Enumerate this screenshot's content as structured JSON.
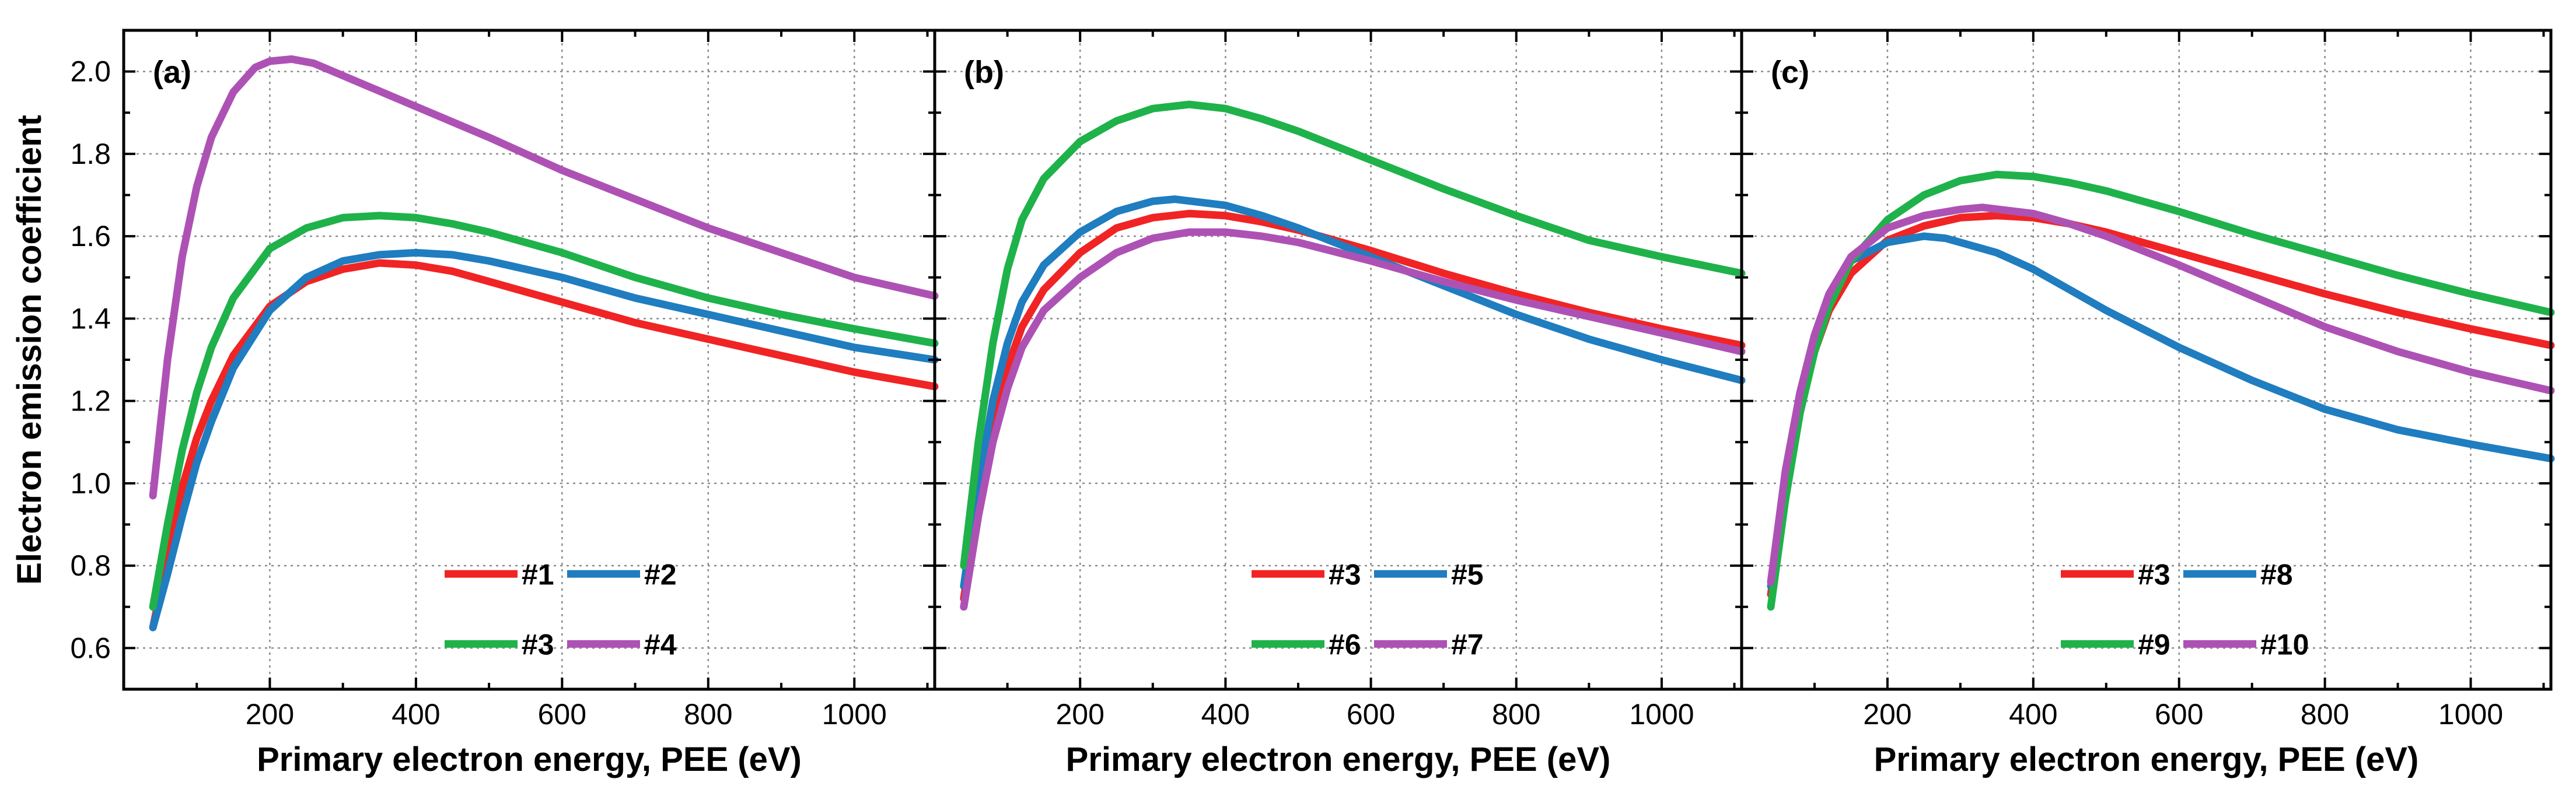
{
  "colors": {
    "#1": "#f02424",
    "#2": "#1f7dc0",
    "#3": "#1fb24a",
    "#4": "#ad52b4",
    "#5": "#1f7dc0",
    "#6": "#1fb24a",
    "#7": "#ad52b4",
    "#8": "#1f7dc0",
    "#9": "#1fb24a",
    "#10": "#ad52b4",
    "panel_c_#3": "#f02424",
    "panel_b_#3": "#f02424"
  },
  "figure": {
    "ylabel": "Electron emission coefficient",
    "xlabel": "Primary electron energy, PEE (eV)"
  },
  "chart_data": [
    {
      "type": "line",
      "panel_label": "(a)",
      "xlabel": "Primary electron energy, PEE (eV)",
      "ylabel": "Electron emission coefficient",
      "xlim": [
        0,
        1110
      ],
      "ylim": [
        0.5,
        2.1
      ],
      "x_ticks": [
        200,
        400,
        600,
        800,
        1000
      ],
      "y_ticks": [
        "0.6",
        "0.8",
        "1.0",
        "1.2",
        "1.4",
        "1.6",
        "1.8",
        "2.0"
      ],
      "grid": true,
      "legend_position": "bottom-right",
      "series": [
        {
          "name": "#1",
          "color": "#f02424",
          "points": [
            [
              40,
              0.65
            ],
            [
              60,
              0.82
            ],
            [
              80,
              0.99
            ],
            [
              100,
              1.11
            ],
            [
              120,
              1.2
            ],
            [
              150,
              1.31
            ],
            [
              200,
              1.43
            ],
            [
              250,
              1.49
            ],
            [
              300,
              1.52
            ],
            [
              350,
              1.535
            ],
            [
              400,
              1.53
            ],
            [
              450,
              1.515
            ],
            [
              500,
              1.49
            ],
            [
              600,
              1.44
            ],
            [
              700,
              1.39
            ],
            [
              800,
              1.35
            ],
            [
              900,
              1.31
            ],
            [
              1000,
              1.27
            ],
            [
              1110,
              1.235
            ]
          ]
        },
        {
          "name": "#2",
          "color": "#1f7dc0",
          "points": [
            [
              40,
              0.65
            ],
            [
              60,
              0.78
            ],
            [
              80,
              0.92
            ],
            [
              100,
              1.05
            ],
            [
              120,
              1.15
            ],
            [
              150,
              1.28
            ],
            [
              200,
              1.42
            ],
            [
              250,
              1.5
            ],
            [
              300,
              1.54
            ],
            [
              350,
              1.555
            ],
            [
              400,
              1.56
            ],
            [
              450,
              1.555
            ],
            [
              500,
              1.54
            ],
            [
              600,
              1.5
            ],
            [
              700,
              1.45
            ],
            [
              800,
              1.41
            ],
            [
              900,
              1.37
            ],
            [
              1000,
              1.33
            ],
            [
              1110,
              1.3
            ]
          ]
        },
        {
          "name": "#3",
          "color": "#1fb24a",
          "points": [
            [
              40,
              0.7
            ],
            [
              60,
              0.9
            ],
            [
              80,
              1.08
            ],
            [
              100,
              1.22
            ],
            [
              120,
              1.33
            ],
            [
              150,
              1.45
            ],
            [
              200,
              1.57
            ],
            [
              250,
              1.62
            ],
            [
              300,
              1.645
            ],
            [
              350,
              1.65
            ],
            [
              400,
              1.645
            ],
            [
              450,
              1.63
            ],
            [
              500,
              1.61
            ],
            [
              600,
              1.56
            ],
            [
              700,
              1.5
            ],
            [
              800,
              1.45
            ],
            [
              900,
              1.41
            ],
            [
              1000,
              1.375
            ],
            [
              1110,
              1.34
            ]
          ]
        },
        {
          "name": "#4",
          "color": "#ad52b4",
          "points": [
            [
              40,
              0.97
            ],
            [
              60,
              1.3
            ],
            [
              80,
              1.55
            ],
            [
              100,
              1.72
            ],
            [
              120,
              1.84
            ],
            [
              150,
              1.95
            ],
            [
              180,
              2.01
            ],
            [
              200,
              2.025
            ],
            [
              230,
              2.03
            ],
            [
              260,
              2.02
            ],
            [
              300,
              1.99
            ],
            [
              400,
              1.915
            ],
            [
              500,
              1.84
            ],
            [
              600,
              1.76
            ],
            [
              700,
              1.69
            ],
            [
              800,
              1.62
            ],
            [
              900,
              1.56
            ],
            [
              1000,
              1.5
            ],
            [
              1110,
              1.455
            ]
          ]
        }
      ]
    },
    {
      "type": "line",
      "panel_label": "(b)",
      "xlabel": "Primary electron energy, PEE (eV)",
      "xlim": [
        0,
        1110
      ],
      "ylim": [
        0.5,
        2.1
      ],
      "x_ticks": [
        200,
        400,
        600,
        800,
        1000
      ],
      "grid": true,
      "legend_position": "bottom-right",
      "series": [
        {
          "name": "#3",
          "color": "#f02424",
          "points": [
            [
              40,
              0.72
            ],
            [
              60,
              0.95
            ],
            [
              80,
              1.14
            ],
            [
              100,
              1.28
            ],
            [
              120,
              1.38
            ],
            [
              150,
              1.47
            ],
            [
              200,
              1.56
            ],
            [
              250,
              1.62
            ],
            [
              300,
              1.645
            ],
            [
              350,
              1.655
            ],
            [
              400,
              1.65
            ],
            [
              450,
              1.635
            ],
            [
              500,
              1.615
            ],
            [
              600,
              1.565
            ],
            [
              700,
              1.51
            ],
            [
              800,
              1.46
            ],
            [
              900,
              1.415
            ],
            [
              1000,
              1.375
            ],
            [
              1110,
              1.335
            ]
          ]
        },
        {
          "name": "#5",
          "color": "#1f7dc0",
          "points": [
            [
              40,
              0.75
            ],
            [
              60,
              1.0
            ],
            [
              80,
              1.2
            ],
            [
              100,
              1.34
            ],
            [
              120,
              1.44
            ],
            [
              150,
              1.53
            ],
            [
              200,
              1.61
            ],
            [
              250,
              1.66
            ],
            [
              300,
              1.685
            ],
            [
              330,
              1.69
            ],
            [
              400,
              1.675
            ],
            [
              450,
              1.65
            ],
            [
              500,
              1.62
            ],
            [
              600,
              1.55
            ],
            [
              700,
              1.48
            ],
            [
              800,
              1.41
            ],
            [
              900,
              1.35
            ],
            [
              1000,
              1.3
            ],
            [
              1110,
              1.25
            ]
          ]
        },
        {
          "name": "#6",
          "color": "#1fb24a",
          "points": [
            [
              40,
              0.8
            ],
            [
              60,
              1.1
            ],
            [
              80,
              1.34
            ],
            [
              100,
              1.52
            ],
            [
              120,
              1.64
            ],
            [
              150,
              1.74
            ],
            [
              200,
              1.83
            ],
            [
              250,
              1.88
            ],
            [
              300,
              1.91
            ],
            [
              350,
              1.92
            ],
            [
              400,
              1.91
            ],
            [
              450,
              1.885
            ],
            [
              500,
              1.855
            ],
            [
              600,
              1.785
            ],
            [
              700,
              1.715
            ],
            [
              800,
              1.65
            ],
            [
              900,
              1.59
            ],
            [
              1000,
              1.55
            ],
            [
              1110,
              1.51
            ]
          ]
        },
        {
          "name": "#7",
          "color": "#ad52b4",
          "points": [
            [
              40,
              0.7
            ],
            [
              60,
              0.92
            ],
            [
              80,
              1.1
            ],
            [
              100,
              1.23
            ],
            [
              120,
              1.33
            ],
            [
              150,
              1.42
            ],
            [
              200,
              1.5
            ],
            [
              250,
              1.56
            ],
            [
              300,
              1.595
            ],
            [
              350,
              1.61
            ],
            [
              400,
              1.61
            ],
            [
              450,
              1.6
            ],
            [
              500,
              1.585
            ],
            [
              600,
              1.54
            ],
            [
              700,
              1.49
            ],
            [
              800,
              1.445
            ],
            [
              900,
              1.405
            ],
            [
              1000,
              1.365
            ],
            [
              1110,
              1.32
            ]
          ]
        }
      ]
    },
    {
      "type": "line",
      "panel_label": "(c)",
      "xlabel": "Primary electron energy, PEE (eV)",
      "xlim": [
        0,
        1110
      ],
      "ylim": [
        0.5,
        2.1
      ],
      "x_ticks": [
        200,
        400,
        600,
        800,
        1000
      ],
      "grid": true,
      "legend_position": "bottom-right",
      "series": [
        {
          "name": "#3",
          "color": "#f02424",
          "points": [
            [
              40,
              0.73
            ],
            [
              60,
              0.98
            ],
            [
              80,
              1.18
            ],
            [
              100,
              1.32
            ],
            [
              120,
              1.42
            ],
            [
              150,
              1.51
            ],
            [
              200,
              1.59
            ],
            [
              250,
              1.625
            ],
            [
              300,
              1.645
            ],
            [
              350,
              1.65
            ],
            [
              400,
              1.645
            ],
            [
              450,
              1.63
            ],
            [
              500,
              1.61
            ],
            [
              600,
              1.56
            ],
            [
              700,
              1.51
            ],
            [
              800,
              1.46
            ],
            [
              900,
              1.415
            ],
            [
              1000,
              1.375
            ],
            [
              1110,
              1.335
            ]
          ]
        },
        {
          "name": "#8",
          "color": "#1f7dc0",
          "points": [
            [
              40,
              0.75
            ],
            [
              60,
              1.02
            ],
            [
              80,
              1.22
            ],
            [
              100,
              1.36
            ],
            [
              120,
              1.46
            ],
            [
              150,
              1.54
            ],
            [
              200,
              1.585
            ],
            [
              250,
              1.6
            ],
            [
              280,
              1.595
            ],
            [
              300,
              1.585
            ],
            [
              350,
              1.56
            ],
            [
              400,
              1.52
            ],
            [
              450,
              1.47
            ],
            [
              500,
              1.42
            ],
            [
              600,
              1.33
            ],
            [
              700,
              1.25
            ],
            [
              800,
              1.18
            ],
            [
              900,
              1.13
            ],
            [
              1000,
              1.095
            ],
            [
              1110,
              1.06
            ]
          ]
        },
        {
          "name": "#9",
          "color": "#1fb24a",
          "points": [
            [
              40,
              0.7
            ],
            [
              60,
              0.96
            ],
            [
              80,
              1.17
            ],
            [
              100,
              1.32
            ],
            [
              120,
              1.43
            ],
            [
              150,
              1.54
            ],
            [
              200,
              1.64
            ],
            [
              250,
              1.7
            ],
            [
              300,
              1.735
            ],
            [
              350,
              1.75
            ],
            [
              400,
              1.745
            ],
            [
              450,
              1.73
            ],
            [
              500,
              1.71
            ],
            [
              600,
              1.66
            ],
            [
              700,
              1.605
            ],
            [
              800,
              1.555
            ],
            [
              900,
              1.505
            ],
            [
              1000,
              1.46
            ],
            [
              1110,
              1.415
            ]
          ]
        },
        {
          "name": "#10",
          "color": "#ad52b4",
          "points": [
            [
              40,
              0.76
            ],
            [
              60,
              1.03
            ],
            [
              80,
              1.22
            ],
            [
              100,
              1.36
            ],
            [
              120,
              1.46
            ],
            [
              150,
              1.55
            ],
            [
              200,
              1.62
            ],
            [
              250,
              1.65
            ],
            [
              300,
              1.665
            ],
            [
              330,
              1.67
            ],
            [
              400,
              1.655
            ],
            [
              450,
              1.63
            ],
            [
              500,
              1.6
            ],
            [
              600,
              1.53
            ],
            [
              700,
              1.455
            ],
            [
              800,
              1.38
            ],
            [
              900,
              1.32
            ],
            [
              1000,
              1.27
            ],
            [
              1110,
              1.225
            ]
          ]
        }
      ]
    }
  ]
}
